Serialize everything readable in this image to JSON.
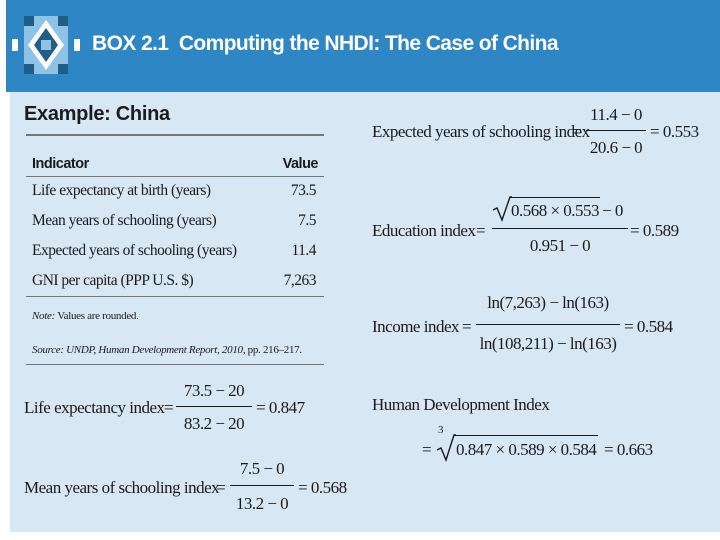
{
  "header": {
    "box_label": "BOX 2.1",
    "title": "Computing the NHDI: The Case of China",
    "colors": {
      "bar": "#2f86c4",
      "panel": "#d8e7f4",
      "logo_dark": "#1f5f86",
      "logo_light": "#8fc3e6"
    }
  },
  "example_title": "Example: China",
  "table": {
    "headers": [
      "Indicator",
      "Value"
    ],
    "rows": [
      {
        "indicator": "Life expectancy at birth (years)",
        "value": "73.5"
      },
      {
        "indicator": "Mean years of schooling (years)",
        "value": "7.5"
      },
      {
        "indicator": "Expected years of schooling (years)",
        "value": "11.4"
      },
      {
        "indicator": "GNI per capita (PPP U.S. $)",
        "value": "7,263"
      }
    ],
    "note_label": "Note:",
    "note": " Values are rounded.",
    "source_label": "Source:",
    "source_italic": " UNDP, Human Development Report, 2010,",
    "source_rest": " pp. 216–217."
  },
  "formulas": {
    "life": {
      "label": "Life expectancy index",
      "eq": "=",
      "num": "73.5 − 20",
      "den": "83.2 − 20",
      "result": "= 0.847"
    },
    "mys": {
      "label": "Mean years of schooling index",
      "eq": "=",
      "num": "7.5 − 0",
      "den": "13.2 − 0",
      "result": "= 0.568"
    },
    "eys": {
      "label": "Expected years of schooling index",
      "eq": "=",
      "num": "11.4 − 0",
      "den": "20.6 − 0",
      "result": "= 0.553"
    },
    "edu": {
      "label": "Education index",
      "eq": "=",
      "num_radicand": "0.568 × 0.553",
      "num_rest": " − 0",
      "den": "0.951 − 0",
      "result": "= 0.589"
    },
    "income": {
      "label": "Income index",
      "eq": "=",
      "num": "ln(7,263) − ln(163)",
      "den": "ln(108,211) − ln(163)",
      "result": "= 0.584"
    },
    "hdi": {
      "title": "Human Development Index",
      "eq": "=",
      "root_index": "3",
      "radicand": "0.847 × 0.589 × 0.584",
      "result": "= 0.663"
    }
  }
}
